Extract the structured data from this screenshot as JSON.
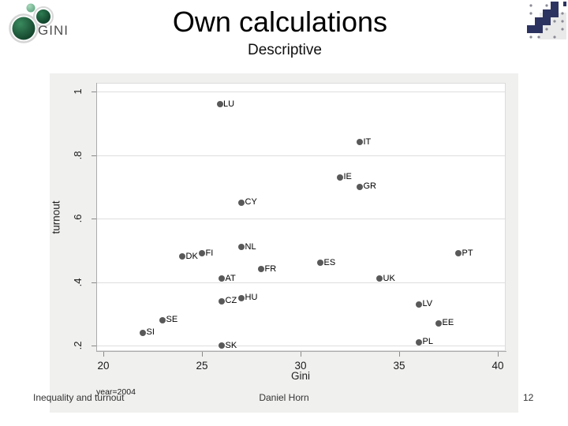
{
  "slide": {
    "title": "Own calculations",
    "subtitle": "Descriptive",
    "footer": {
      "left": "Inequality and turnout",
      "center": "Daniel Horn",
      "page_number": "12"
    }
  },
  "logos": {
    "gini_text": "GINI",
    "gini_dark_green": "#0f3d27",
    "gini_mid_green": "#2e7d52",
    "gini_light_green": "#7fbf9a",
    "gini_ring_gray": "#d5d5d5",
    "gini_text_gray": "#4f4f4f",
    "pixel_square_color": "#2d3360",
    "pixel_dot_color": "#8a8a96",
    "pixel_bg_gray": "#e9e9e9"
  },
  "chart_data": {
    "type": "scatter",
    "title": "",
    "xlabel": "Gini",
    "ylabel": "turnout",
    "note": "year=2004",
    "xlim": [
      19.6,
      40.4
    ],
    "ylim": [
      0.18,
      1.03
    ],
    "x_ticks": [
      20,
      25,
      30,
      35,
      40
    ],
    "y_ticks": [
      {
        "label": "1",
        "value": 1
      },
      {
        "label": ".8",
        "value": 0.8
      },
      {
        "label": ".6",
        "value": 0.6
      },
      {
        "label": ".4",
        "value": 0.4
      },
      {
        "label": ".2",
        "value": 0.2
      }
    ],
    "grid": "horizontal",
    "legend": "none",
    "marker_color": "#595959",
    "panel_bg": "#f0f0ef",
    "plot_bg": "#ffffff",
    "points": [
      {
        "label": "LU",
        "gini": 25.9,
        "turnout": 0.96
      },
      {
        "label": "IT",
        "gini": 33,
        "turnout": 0.84
      },
      {
        "label": "IE",
        "gini": 32,
        "turnout": 0.73
      },
      {
        "label": "GR",
        "gini": 33,
        "turnout": 0.7
      },
      {
        "label": "CY",
        "gini": 27,
        "turnout": 0.65
      },
      {
        "label": "NL",
        "gini": 27,
        "turnout": 0.51
      },
      {
        "label": "DK",
        "gini": 24,
        "turnout": 0.48
      },
      {
        "label": "FI",
        "gini": 25,
        "turnout": 0.49
      },
      {
        "label": "ES",
        "gini": 31,
        "turnout": 0.46
      },
      {
        "label": "PT",
        "gini": 38,
        "turnout": 0.49
      },
      {
        "label": "FR",
        "gini": 28,
        "turnout": 0.44
      },
      {
        "label": "AT",
        "gini": 26,
        "turnout": 0.41
      },
      {
        "label": "UK",
        "gini": 34,
        "turnout": 0.41
      },
      {
        "label": "HU",
        "gini": 27,
        "turnout": 0.35
      },
      {
        "label": "CZ",
        "gini": 26,
        "turnout": 0.34
      },
      {
        "label": "LV",
        "gini": 36,
        "turnout": 0.33
      },
      {
        "label": "SE",
        "gini": 23,
        "turnout": 0.28
      },
      {
        "label": "EE",
        "gini": 37,
        "turnout": 0.27
      },
      {
        "label": "SI",
        "gini": 22,
        "turnout": 0.24
      },
      {
        "label": "PL",
        "gini": 36,
        "turnout": 0.21
      },
      {
        "label": "SK",
        "gini": 26,
        "turnout": 0.2
      }
    ]
  }
}
